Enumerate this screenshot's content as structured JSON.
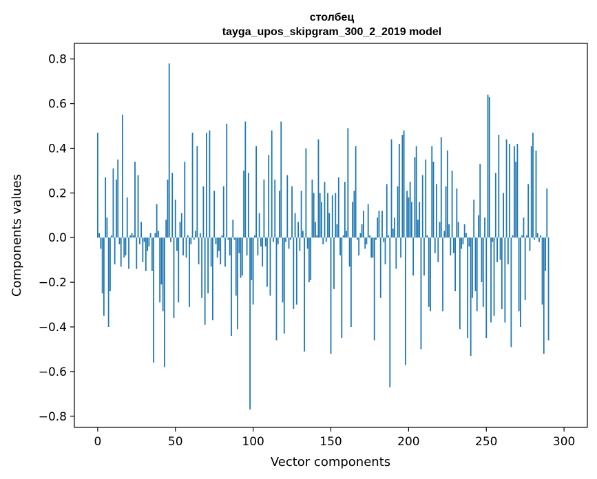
{
  "chart_data": {
    "type": "bar",
    "title": "столбец",
    "subtitle": "tayga_upos_skipgram_300_2_2019 model",
    "xlabel": "Vector components",
    "ylabel": "Components values",
    "xlim": [
      -15,
      315
    ],
    "ylim": [
      -0.85,
      0.87
    ],
    "xticks": [
      0,
      50,
      100,
      150,
      200,
      250,
      300
    ],
    "yticks": [
      -0.8,
      -0.6,
      -0.4,
      -0.2,
      0.0,
      0.2,
      0.4,
      0.6,
      0.8
    ],
    "ytick_labels": [
      "−0.8",
      "−0.6",
      "−0.4",
      "−0.2",
      "0.0",
      "0.2",
      "0.4",
      "0.6",
      "0.8"
    ],
    "bar_color": "#1f77b4",
    "grid": false,
    "values": [
      0.47,
      0.02,
      -0.05,
      -0.25,
      -0.35,
      0.27,
      0.09,
      -0.4,
      -0.24,
      0.01,
      0.31,
      -0.12,
      0.26,
      0.35,
      -0.03,
      -0.13,
      0.55,
      -0.09,
      -0.08,
      0.18,
      -0.14,
      0.01,
      0.02,
      0.01,
      0.34,
      -0.14,
      0.28,
      -0.03,
      0.07,
      -0.11,
      -0.02,
      -0.15,
      -0.06,
      -0.04,
      0.02,
      -0.15,
      -0.56,
      0.02,
      0.15,
      0.03,
      -0.29,
      -0.21,
      -0.33,
      -0.58,
      0.08,
      0.26,
      0.78,
      -0.02,
      0.29,
      -0.36,
      0.17,
      -0.06,
      -0.29,
      0.07,
      0.11,
      -0.08,
      0.34,
      -0.09,
      0.01,
      -0.31,
      -0.03,
      0.47,
      -0.01,
      0.03,
      0.41,
      -0.12,
      0.02,
      -0.27,
      0.23,
      -0.39,
      0.47,
      -0.25,
      0.48,
      -0.13,
      -0.37,
      0.21,
      -0.03,
      -0.09,
      -0.06,
      -0.12,
      0.01,
      0.23,
      -0.13,
      0.51,
      -0.01,
      -0.08,
      -0.44,
      0.08,
      -0.01,
      -0.26,
      -0.41,
      -0.07,
      -0.18,
      -0.17,
      0.3,
      0.52,
      -0.08,
      0.29,
      -0.77,
      -0.19,
      -0.3,
      0.01,
      0.41,
      -0.08,
      0.11,
      -0.04,
      -0.13,
      0.26,
      -0.04,
      -0.22,
      0.37,
      -0.26,
      0.48,
      -0.02,
      0.26,
      -0.46,
      -0.03,
      0.21,
      0.52,
      -0.29,
      -0.43,
      -0.02,
      0.28,
      -0.05,
      -0.01,
      0.23,
      -0.32,
      0.11,
      -0.3,
      0.07,
      -0.06,
      0.21,
      0.03,
      -0.51,
      0.4,
      -0.05,
      -0.2,
      -0.19,
      0.26,
      0.2,
      0.07,
      0.01,
      0.44,
      0.2,
      0.16,
      -0.03,
      0.25,
      -0.02,
      0.2,
      0.11,
      -0.52,
      0.19,
      -0.23,
      0.2,
      0.06,
      0.27,
      -0.08,
      -0.45,
      0.01,
      0.25,
      0.03,
      0.49,
      -0.13,
      -0.4,
      0.16,
      0.21,
      0.41,
      -0.01,
      -0.08,
      0.02,
      0.06,
      0.12,
      -0.05,
      -0.03,
      0.15,
      0.01,
      -0.09,
      -0.09,
      -0.46,
      -0.01,
      0.09,
      0.12,
      -0.27,
      0.12,
      -0.02,
      -0.12,
      0.24,
      0.01,
      -0.67,
      0.44,
      0.04,
      0.09,
      -0.14,
      0.23,
      0.42,
      -0.09,
      0.46,
      0.48,
      -0.57,
      0.21,
      0.18,
      0.25,
      0.16,
      -0.17,
      0.36,
      0.41,
      0.08,
      0.16,
      -0.5,
      0.28,
      -0.17,
      0.35,
      0.01,
      -0.31,
      -0.33,
      0.41,
      0.34,
      -0.07,
      0.24,
      -0.11,
      0.07,
      0.45,
      -0.33,
      0.03,
      0.23,
      0.39,
      0.06,
      -0.08,
      0.3,
      -0.07,
      -0.24,
      0.22,
      0.07,
      -0.41,
      -0.05,
      -0.03,
      0.06,
      0.02,
      -0.45,
      -0.04,
      -0.53,
      -0.27,
      0.17,
      -0.24,
      -0.33,
      0.1,
      0.33,
      -0.2,
      -0.31,
      0.09,
      -0.45,
      0.64,
      0.63,
      -0.38,
      -0.02,
      -0.35,
      0.29,
      -0.11,
      0.46,
      -0.1,
      -0.32,
      0.2,
      -0.38,
      0.44,
      -0.12,
      0.42,
      -0.49,
      0.01,
      0.41,
      0.34,
      0.42,
      -0.33,
      -0.4,
      0.01,
      0.09,
      -0.28,
      0.01,
      0.24,
      -0.06,
      0.41,
      0.47,
      -0.01,
      0.39,
      0.02,
      -0.02,
      0.01,
      -0.3,
      -0.52,
      -0.15,
      0.22,
      -0.46
    ]
  }
}
